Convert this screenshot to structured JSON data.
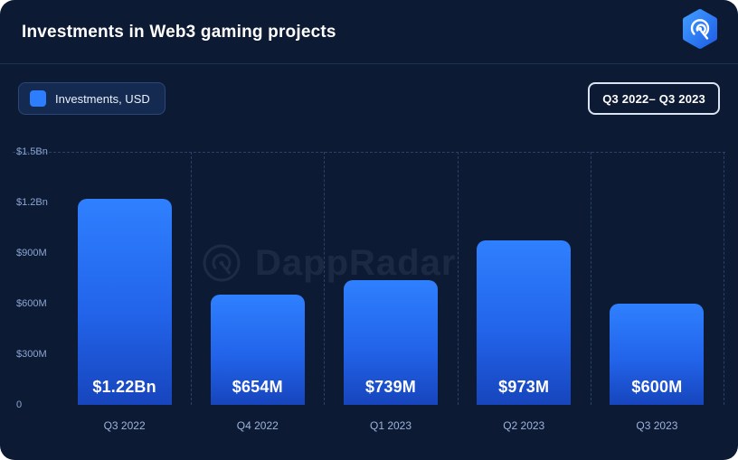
{
  "header": {
    "title": "Investments in Web3 gaming projects"
  },
  "icons": {
    "logo": "dappradar-radar-logo",
    "watermark_icon": "radar-icon"
  },
  "legend": {
    "label": "Investments, USD"
  },
  "period": {
    "label": "Q3 2022– Q3 2023"
  },
  "watermark": {
    "text": "DappRadar"
  },
  "colors": {
    "background": "#0D1A33",
    "accent_blue": "#2D7DFF",
    "bar_gradient_top": "#2F80FF",
    "bar_gradient_bottom": "#1745BD",
    "axis_text": "#8AA6D4",
    "gridline": "#2A4068"
  },
  "chart_data": {
    "type": "bar",
    "title": "Investments in Web3 gaming projects",
    "series_name": "Investments, USD",
    "units": "USD millions",
    "categories": [
      "Q3 2022",
      "Q4 2022",
      "Q1 2023",
      "Q2 2023",
      "Q3 2023"
    ],
    "values": [
      1220,
      654,
      739,
      973,
      600
    ],
    "value_labels": [
      "$1.22Bn",
      "$654M",
      "$739M",
      "$973M",
      "$600M"
    ],
    "ylim": [
      0,
      1500
    ],
    "yticks": [
      {
        "label": "$1.5Bn",
        "value": 1500
      },
      {
        "label": "$1.2Bn",
        "value": 1200
      },
      {
        "label": "$900M",
        "value": 900
      },
      {
        "label": "$600M",
        "value": 600
      },
      {
        "label": "$300M",
        "value": 300
      },
      {
        "label": "0",
        "value": 0
      }
    ],
    "grid": "dashed",
    "legend_position": "top-left",
    "period_shown": "Q3 2022– Q3 2023"
  }
}
